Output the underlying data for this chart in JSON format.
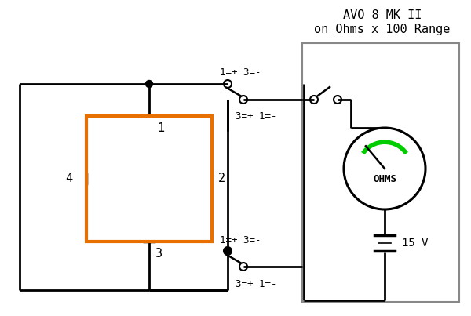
{
  "bg_color": "#ffffff",
  "line_color": "#000000",
  "orange_color": "#e87000",
  "green_color": "#00cc00",
  "gray_color": "#888888",
  "fig_width": 6.0,
  "fig_height": 4.03,
  "dpi": 100,
  "title_line1": "AVO 8 MK II",
  "title_line2": "on Ohms x 100 Range",
  "label_1": "1",
  "label_2": "2",
  "label_3": "3",
  "label_4": "4",
  "label_ohms": "OHMS",
  "label_15v": "15 V",
  "label_upper_top": "1=+ 3=-",
  "label_upper_bot": "3=+ 1=-",
  "label_lower_top": "1=+ 3=-",
  "label_lower_bot": "3=+ 1=-"
}
